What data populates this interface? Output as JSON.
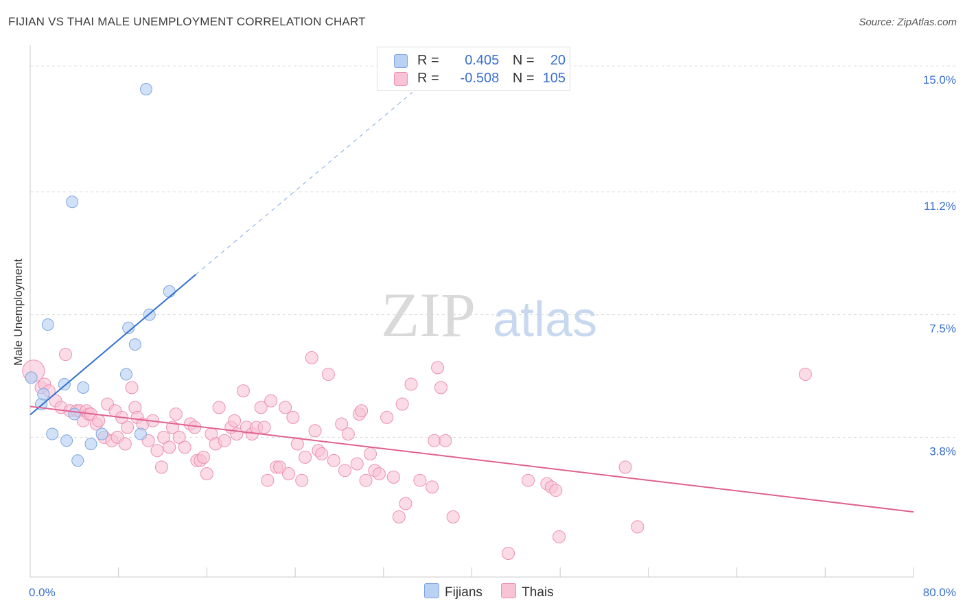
{
  "title": "FIJIAN VS THAI MALE UNEMPLOYMENT CORRELATION CHART",
  "source": "Source: ZipAtlas.com",
  "watermark": {
    "part1": "ZIP",
    "part2": "atlas"
  },
  "colors": {
    "fijian_fill": "#b9d1f3",
    "fijian_stroke": "#7fa6e0",
    "fijian_line": "#2f6fd0",
    "thai_fill": "#f8c3d5",
    "thai_stroke": "#ec8fb0",
    "thai_line": "#e0608f",
    "tick_text": "#3a6fd0"
  },
  "legend_top": [
    {
      "r_label": "R =",
      "r_value": "0.405",
      "n_label": "N =",
      "n_value": "20"
    },
    {
      "r_label": "R =",
      "r_value": "-0.508",
      "n_label": "N =",
      "n_value": "105"
    }
  ],
  "chart_data": {
    "type": "scatter",
    "title": "FIJIAN VS THAI MALE UNEMPLOYMENT CORRELATION CHART",
    "xlabel": "",
    "ylabel": "Male Unemployment",
    "xlim": [
      0,
      80
    ],
    "ylim": [
      0,
      15.5
    ],
    "x_tick_labels": [
      "0.0%",
      "80.0%"
    ],
    "y_ticks": [
      3.8,
      7.5,
      11.2,
      15.0
    ],
    "y_tick_labels": [
      "3.8%",
      "7.5%",
      "11.2%",
      "15.0%"
    ],
    "grid": true,
    "legend_position": "bottom-center",
    "series": [
      {
        "name": "Fijians",
        "points": [
          [
            0.1,
            5.6
          ],
          [
            1.0,
            4.8
          ],
          [
            1.2,
            5.1
          ],
          [
            1.6,
            7.2
          ],
          [
            2.0,
            3.9
          ],
          [
            3.1,
            5.4
          ],
          [
            3.3,
            3.7
          ],
          [
            4.0,
            4.5
          ],
          [
            3.8,
            10.9
          ],
          [
            4.3,
            3.1
          ],
          [
            4.8,
            5.3
          ],
          [
            5.5,
            3.6
          ],
          [
            6.5,
            3.9
          ],
          [
            8.7,
            5.7
          ],
          [
            8.9,
            7.1
          ],
          [
            9.5,
            6.6
          ],
          [
            10.0,
            3.9
          ],
          [
            10.5,
            14.3
          ],
          [
            10.8,
            7.5
          ],
          [
            12.6,
            8.2
          ]
        ],
        "trend": {
          "x": [
            0,
            15
          ],
          "y": [
            4.48,
            8.71
          ],
          "dashed_extension": {
            "x": [
              15,
              34.6
            ],
            "y": [
              8.71,
              14.2
            ]
          }
        }
      },
      {
        "name": "Thais",
        "points": [
          [
            0.3,
            5.8
          ],
          [
            1.0,
            5.3
          ],
          [
            1.3,
            5.4
          ],
          [
            1.7,
            5.2
          ],
          [
            2.3,
            4.9
          ],
          [
            2.8,
            4.7
          ],
          [
            3.2,
            6.3
          ],
          [
            3.6,
            4.6
          ],
          [
            4.2,
            4.6
          ],
          [
            4.5,
            4.6
          ],
          [
            4.8,
            4.3
          ],
          [
            5.1,
            4.6
          ],
          [
            5.3,
            4.5
          ],
          [
            5.5,
            4.5
          ],
          [
            6.0,
            4.2
          ],
          [
            6.2,
            4.3
          ],
          [
            6.7,
            3.8
          ],
          [
            7.0,
            4.8
          ],
          [
            7.4,
            3.7
          ],
          [
            7.7,
            4.6
          ],
          [
            7.9,
            3.8
          ],
          [
            8.3,
            4.4
          ],
          [
            8.6,
            3.6
          ],
          [
            8.8,
            4.1
          ],
          [
            9.2,
            5.3
          ],
          [
            9.5,
            4.7
          ],
          [
            9.7,
            4.4
          ],
          [
            10.2,
            4.2
          ],
          [
            10.7,
            3.7
          ],
          [
            11.1,
            4.3
          ],
          [
            11.5,
            3.4
          ],
          [
            11.9,
            2.9
          ],
          [
            12.1,
            3.8
          ],
          [
            12.6,
            3.5
          ],
          [
            12.9,
            4.1
          ],
          [
            13.2,
            4.5
          ],
          [
            13.5,
            3.8
          ],
          [
            14.0,
            3.5
          ],
          [
            14.5,
            4.2
          ],
          [
            14.9,
            4.1
          ],
          [
            15.1,
            3.1
          ],
          [
            15.4,
            3.1
          ],
          [
            15.7,
            3.2
          ],
          [
            16.0,
            2.7
          ],
          [
            16.4,
            3.9
          ],
          [
            16.8,
            3.6
          ],
          [
            17.1,
            4.7
          ],
          [
            17.6,
            3.7
          ],
          [
            18.2,
            4.1
          ],
          [
            18.5,
            4.3
          ],
          [
            18.7,
            3.9
          ],
          [
            19.3,
            5.2
          ],
          [
            19.6,
            4.1
          ],
          [
            20.1,
            3.9
          ],
          [
            20.5,
            4.1
          ],
          [
            20.9,
            4.7
          ],
          [
            21.2,
            4.1
          ],
          [
            21.5,
            2.5
          ],
          [
            21.8,
            4.9
          ],
          [
            22.3,
            2.9
          ],
          [
            22.6,
            2.9
          ],
          [
            23.1,
            4.7
          ],
          [
            23.4,
            2.7
          ],
          [
            23.8,
            4.4
          ],
          [
            24.2,
            3.6
          ],
          [
            24.6,
            2.5
          ],
          [
            24.9,
            3.2
          ],
          [
            25.5,
            6.2
          ],
          [
            25.8,
            4.0
          ],
          [
            26.1,
            3.4
          ],
          [
            26.4,
            3.3
          ],
          [
            27.0,
            5.7
          ],
          [
            27.5,
            3.1
          ],
          [
            28.2,
            4.2
          ],
          [
            28.5,
            2.8
          ],
          [
            28.8,
            3.9
          ],
          [
            29.6,
            3.0
          ],
          [
            29.8,
            4.5
          ],
          [
            30.0,
            4.6
          ],
          [
            30.4,
            2.5
          ],
          [
            30.8,
            3.3
          ],
          [
            31.2,
            2.8
          ],
          [
            31.6,
            2.7
          ],
          [
            32.3,
            4.4
          ],
          [
            32.9,
            2.6
          ],
          [
            33.4,
            1.4
          ],
          [
            33.7,
            4.8
          ],
          [
            34.0,
            1.8
          ],
          [
            34.5,
            5.4
          ],
          [
            35.3,
            2.5
          ],
          [
            36.4,
            2.3
          ],
          [
            36.6,
            3.7
          ],
          [
            36.9,
            5.9
          ],
          [
            37.2,
            5.3
          ],
          [
            37.6,
            3.7
          ],
          [
            38.3,
            1.4
          ],
          [
            43.3,
            0.3
          ],
          [
            45.1,
            2.5
          ],
          [
            46.8,
            2.4
          ],
          [
            47.2,
            2.3
          ],
          [
            47.6,
            2.2
          ],
          [
            47.9,
            0.8
          ],
          [
            53.9,
            2.9
          ],
          [
            55.0,
            1.1
          ],
          [
            70.2,
            5.7
          ]
        ],
        "trend": {
          "x": [
            0,
            80
          ],
          "y": [
            4.73,
            1.55
          ]
        }
      }
    ]
  }
}
